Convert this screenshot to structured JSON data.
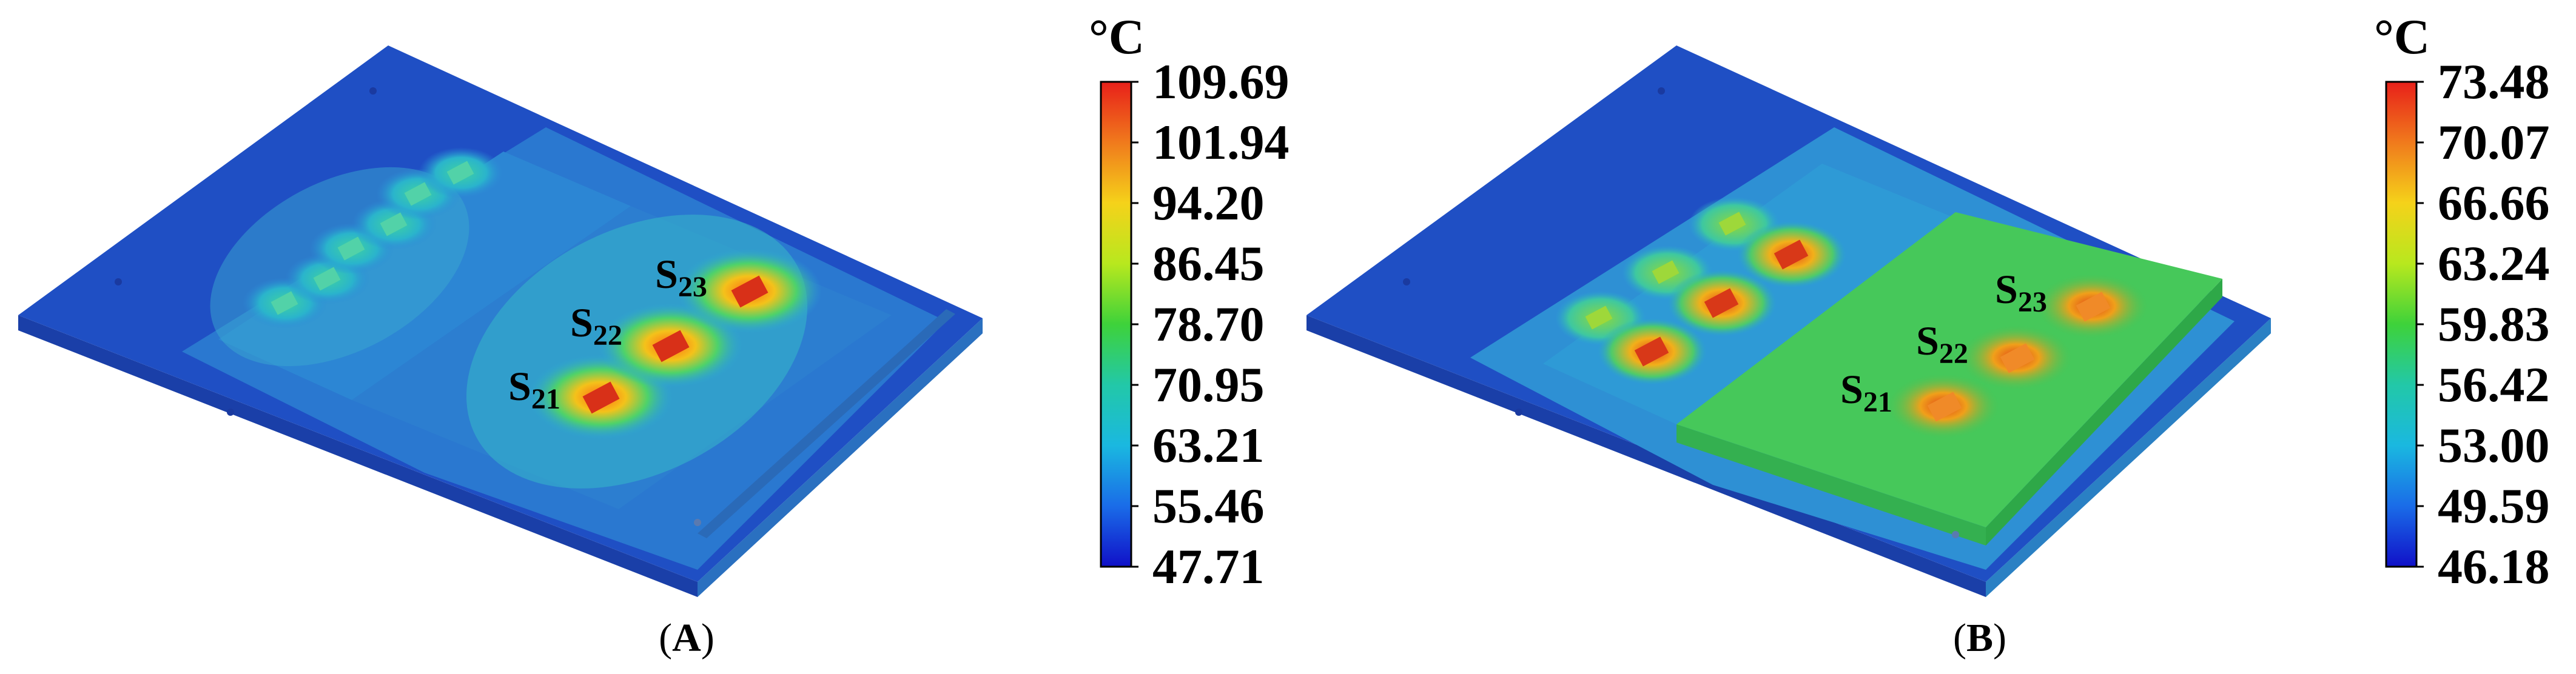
{
  "panels": [
    {
      "id": "A",
      "caption_letter": "A",
      "unit": "°C",
      "colorbar_ticks": [
        "109.69",
        "101.94",
        "94.20",
        "86.45",
        "78.70",
        "70.95",
        "63.21",
        "55.46",
        "47.71"
      ],
      "chip_labels": [
        {
          "base": "S",
          "sub": "21"
        },
        {
          "base": "S",
          "sub": "22"
        },
        {
          "base": "S",
          "sub": "23"
        }
      ]
    },
    {
      "id": "B",
      "caption_letter": "B",
      "unit": "°C",
      "colorbar_ticks": [
        "73.48",
        "70.07",
        "66.66",
        "63.24",
        "59.83",
        "56.42",
        "53.00",
        "49.59",
        "46.18"
      ],
      "chip_labels": [
        {
          "base": "S",
          "sub": "21"
        },
        {
          "base": "S",
          "sub": "22"
        },
        {
          "base": "S",
          "sub": "23"
        }
      ]
    }
  ],
  "colors": {
    "baseplate": "#1f5fc8",
    "baseplate_dark": "#1a3fb0",
    "edge": "#153aa0",
    "region_light": "#2a8ad8",
    "region_cyan": "#3bb0d8",
    "region_green": "#3fc46a",
    "hot_red": "#e0301a",
    "hot_orange": "#ff8a1c",
    "colorbar_stops": [
      "#e8201a",
      "#f07a1c",
      "#f5d21a",
      "#b8e81e",
      "#3ed23a",
      "#22c8a8",
      "#1ab8e0",
      "#1a6ce8",
      "#1010c8"
    ]
  }
}
